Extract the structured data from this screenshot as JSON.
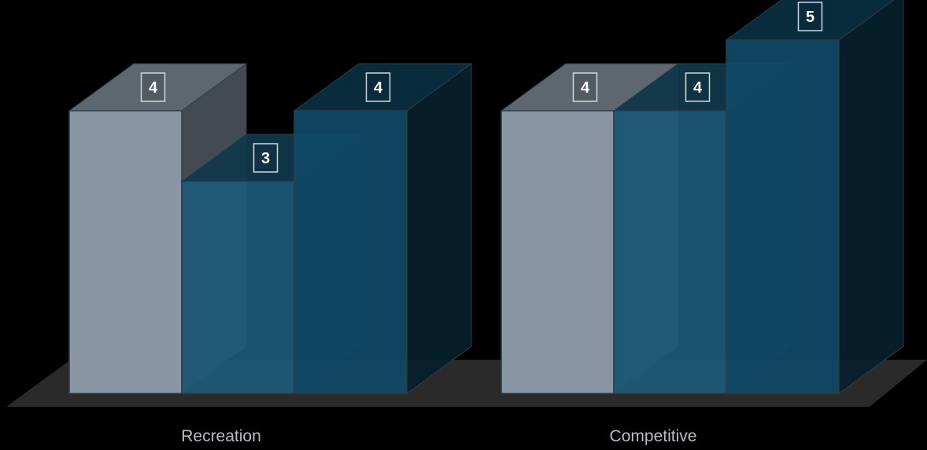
{
  "chart_data": {
    "type": "bar",
    "categories": [
      "Recreation",
      "Competitive"
    ],
    "series": [
      {
        "values": [
          4,
          4
        ],
        "color": "#8a96a3"
      },
      {
        "values": [
          3,
          4
        ],
        "color": "#1c5a78"
      },
      {
        "values": [
          4,
          5
        ],
        "color": "#0f4a68"
      }
    ],
    "ylim": [
      0,
      5
    ],
    "grid": false,
    "legend": "none",
    "data_labels": true,
    "style": "3d"
  }
}
